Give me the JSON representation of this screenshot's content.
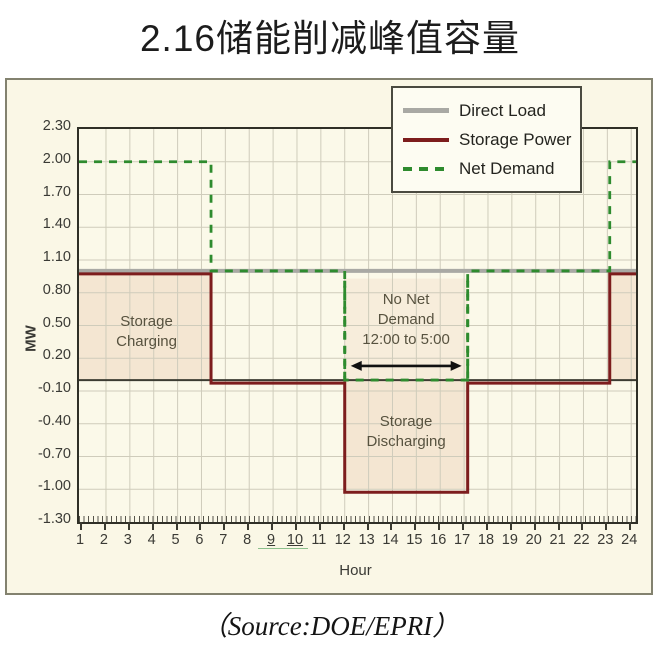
{
  "title": "2.16储能削减峰值容量",
  "source": "（Source:DOE/EPRI）",
  "colors": {
    "direct_load": "#a9a9a4",
    "storage_power": "#7d1d1d",
    "net_demand": "#2e8b2e",
    "grid": "#cfccbb",
    "zero_line": "#3c3c32",
    "arrow": "#111111",
    "region_fill": "rgba(201,106,58,0.13)",
    "region_fill_light": "rgba(201,106,58,0.08)",
    "panel_background": "#faf7e6",
    "plot_background": "#fbf9e9"
  },
  "chart_data": {
    "type": "line",
    "title": "",
    "xlabel": "Hour",
    "ylabel": "MW",
    "xlim": [
      1,
      24
    ],
    "ylim": [
      -1.3,
      2.3
    ],
    "grid": true,
    "legend_position": "top-right",
    "x_ticks": [
      "1",
      "2",
      "3",
      "4",
      "5",
      "6",
      "7",
      "8",
      "9",
      "10",
      "11",
      "12",
      "13",
      "14",
      "15",
      "16",
      "17",
      "18",
      "19",
      "20",
      "21",
      "22",
      "23",
      "24"
    ],
    "underlined_x_ticks": [
      "9",
      "10"
    ],
    "y_ticks": [
      "2.30",
      "2.00",
      "1.70",
      "1.40",
      "1.10",
      "0.80",
      "0.50",
      "0.20",
      "-0.10",
      "-0.40",
      "-0.70",
      "-1.00",
      "-1.30"
    ],
    "series": [
      {
        "name": "Direct Load",
        "style": "solid",
        "color": "#a9a9a4",
        "steps": [
          {
            "from": 1,
            "to": 24,
            "value": 1.0
          }
        ]
      },
      {
        "name": "Storage Power",
        "style": "solid",
        "color": "#7d1d1d",
        "steps": [
          {
            "from": 1,
            "to": 6.4,
            "value": 1.0
          },
          {
            "from": 6.4,
            "to": 12,
            "value": 0.0
          },
          {
            "from": 12,
            "to": 17.15,
            "value": -1.0
          },
          {
            "from": 17.15,
            "to": 23.1,
            "value": 0.0
          },
          {
            "from": 23.1,
            "to": 24,
            "value": 1.0
          }
        ]
      },
      {
        "name": "Net Demand",
        "style": "dashed",
        "color": "#2e8b2e",
        "steps": [
          {
            "from": 1,
            "to": 6.4,
            "value": 2.0
          },
          {
            "from": 6.4,
            "to": 12,
            "value": 1.0
          },
          {
            "from": 12,
            "to": 17.15,
            "value": 0.0
          },
          {
            "from": 17.15,
            "to": 23.1,
            "value": 1.0
          },
          {
            "from": 23.1,
            "to": 24,
            "value": 2.0
          }
        ]
      }
    ],
    "annotations": {
      "storage_charging": {
        "lines": [
          "Storage",
          "Charging"
        ],
        "hour_range": [
          1,
          6.4
        ],
        "value_range": [
          0,
          1.0
        ]
      },
      "no_net_demand": {
        "lines": [
          "No Net",
          "Demand",
          "12:00 to 5:00"
        ],
        "hour_range": [
          12,
          17.15
        ],
        "value_range": [
          0,
          0.93
        ],
        "arrow_value": 0.13
      },
      "storage_discharging": {
        "lines": [
          "Storage",
          "Discharging"
        ],
        "hour_range": [
          12,
          17.15
        ],
        "value_range": [
          -1.0,
          0
        ]
      },
      "right_charging": {
        "lines": [],
        "hour_range": [
          23.1,
          24
        ],
        "value_range": [
          0,
          1.0
        ]
      }
    }
  }
}
